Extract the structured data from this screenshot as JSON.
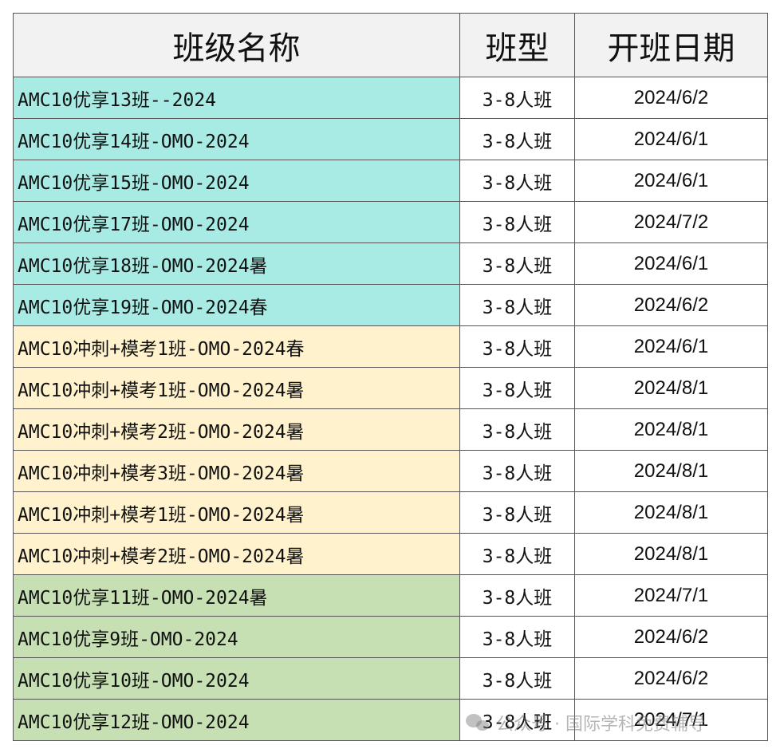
{
  "headers": [
    "班级名称",
    "班型",
    "开班日期"
  ],
  "groups": [
    {
      "color": "#a8ebe5",
      "rows": [
        {
          "name": "AMC10优享13班--2024",
          "type": "3-8人班",
          "date": "2024/6/2"
        },
        {
          "name": "AMC10优享14班-OMO-2024",
          "type": "3-8人班",
          "date": "2024/6/1"
        },
        {
          "name": "AMC10优享15班-OMO-2024",
          "type": "3-8人班",
          "date": "2024/6/1"
        },
        {
          "name": "AMC10优享17班-OMO-2024",
          "type": "3-8人班",
          "date": "2024/7/2"
        },
        {
          "name": "AMC10优享18班-OMO-2024暑",
          "type": "3-8人班",
          "date": "2024/6/1"
        },
        {
          "name": "AMC10优享19班-OMO-2024春",
          "type": "3-8人班",
          "date": "2024/6/2"
        }
      ]
    },
    {
      "color": "#fff2cc",
      "rows": [
        {
          "name": "AMC10冲刺+模考1班-OMO-2024春",
          "type": "3-8人班",
          "date": "2024/6/1"
        },
        {
          "name": "AMC10冲刺+模考1班-OMO-2024暑",
          "type": "3-8人班",
          "date": "2024/8/1"
        },
        {
          "name": "AMC10冲刺+模考2班-OMO-2024暑",
          "type": "3-8人班",
          "date": "2024/8/1"
        },
        {
          "name": "AMC10冲刺+模考3班-OMO-2024暑",
          "type": "3-8人班",
          "date": "2024/8/1"
        },
        {
          "name": "AMC10冲刺+模考1班-OMO-2024暑",
          "type": "3-8人班",
          "date": "2024/8/1"
        },
        {
          "name": "AMC10冲刺+模考2班-OMO-2024暑",
          "type": "3-8人班",
          "date": "2024/8/1"
        }
      ]
    },
    {
      "color": "#c6e0b4",
      "rows": [
        {
          "name": "AMC10优享11班-OMO-2024暑",
          "type": "3-8人班",
          "date": "2024/7/1"
        },
        {
          "name": "AMC10优享9班-OMO-2024",
          "type": "3-8人班",
          "date": "2024/6/2"
        },
        {
          "name": "AMC10优享10班-OMO-2024",
          "type": "3-8人班",
          "date": "2024/6/2"
        },
        {
          "name": "AMC10优享12班-OMO-2024",
          "type": "3-8人班",
          "date": "2024/7/1"
        }
      ]
    }
  ],
  "watermark": {
    "icon": "wechat-icon",
    "text": "公众号 · 国际学科免费辅导"
  }
}
